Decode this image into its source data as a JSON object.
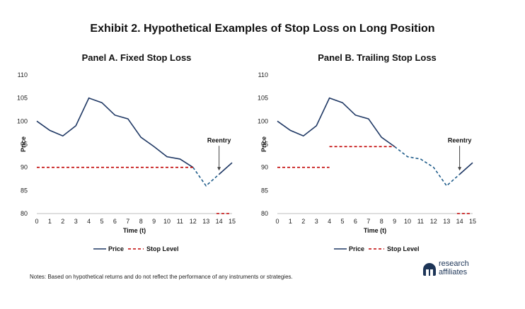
{
  "exhibit_title": "Exhibit 2. Hypothetical Examples of Stop Loss on Long Position",
  "notes": "Notes: Based on hypothetical returns and do not reflect the performance of any instruments or strategies.",
  "brand": {
    "line1": "research",
    "line2": "affiliates"
  },
  "colors": {
    "price": "#1f3864",
    "stop": "#c00000",
    "dashed_price": "#1f5c8a"
  },
  "chart_data": [
    {
      "type": "line",
      "title": "Panel A. Fixed Stop Loss",
      "xlabel": "Time (t)",
      "ylabel": "Price",
      "x": [
        0,
        1,
        2,
        3,
        4,
        5,
        6,
        7,
        8,
        9,
        10,
        11,
        12,
        13,
        14,
        15
      ],
      "xlim": [
        0,
        15
      ],
      "ylim": [
        80,
        110
      ],
      "yticks": [
        80,
        85,
        90,
        95,
        100,
        105,
        110
      ],
      "grid": false,
      "legend": "bottom-center",
      "series": [
        {
          "name": "Price",
          "style": "solid",
          "x": [
            0,
            1,
            2,
            3,
            4,
            5,
            6,
            7,
            8,
            9,
            10,
            11,
            12
          ],
          "values": [
            100,
            98,
            96.8,
            99,
            105,
            104,
            101.3,
            100.5,
            96.5,
            94.5,
            92.3,
            91.8,
            90
          ]
        },
        {
          "name": "",
          "style": "dashed",
          "x": [
            12,
            13,
            14
          ],
          "values": [
            90,
            86,
            88.5
          ]
        },
        {
          "name": "",
          "style": "solid",
          "x": [
            14,
            15
          ],
          "values": [
            88.5,
            91
          ]
        },
        {
          "name": "Stop Level",
          "style": "dashed",
          "segments": [
            {
              "x": [
                0,
                12
              ],
              "values": [
                90,
                90
              ]
            },
            {
              "x": [
                13.8,
                14.8
              ],
              "values": [
                80,
                80
              ]
            }
          ]
        }
      ],
      "annotations": [
        {
          "text": "Reentry",
          "x": 14,
          "y": 94.5,
          "arrow_to": 89.3
        }
      ]
    },
    {
      "type": "line",
      "title": "Panel B. Trailing Stop Loss",
      "xlabel": "Time (t)",
      "ylabel": "Price",
      "x": [
        0,
        1,
        2,
        3,
        4,
        5,
        6,
        7,
        8,
        9,
        10,
        11,
        12,
        13,
        14,
        15
      ],
      "xlim": [
        0,
        15
      ],
      "ylim": [
        80,
        110
      ],
      "yticks": [
        80,
        85,
        90,
        95,
        100,
        105,
        110
      ],
      "grid": false,
      "legend": "bottom-center",
      "series": [
        {
          "name": "Price",
          "style": "solid",
          "x": [
            0,
            1,
            2,
            3,
            4,
            5,
            6,
            7,
            8,
            9
          ],
          "values": [
            100,
            98,
            96.8,
            99,
            105,
            104,
            101.3,
            100.5,
            96.5,
            94.5
          ]
        },
        {
          "name": "",
          "style": "dashed",
          "x": [
            9,
            10,
            11,
            12,
            13,
            14
          ],
          "values": [
            94.5,
            92.3,
            91.8,
            90,
            86,
            88.5
          ]
        },
        {
          "name": "",
          "style": "solid",
          "x": [
            14,
            15
          ],
          "values": [
            88.5,
            91
          ]
        },
        {
          "name": "Stop Level",
          "style": "dashed",
          "segments": [
            {
              "x": [
                0,
                4
              ],
              "values": [
                90,
                90
              ]
            },
            {
              "x": [
                4,
                9
              ],
              "values": [
                94.5,
                94.5
              ]
            },
            {
              "x": [
                13.8,
                14.8
              ],
              "values": [
                80,
                80
              ]
            }
          ]
        }
      ],
      "annotations": [
        {
          "text": "Reentry",
          "x": 14,
          "y": 94.5,
          "arrow_to": 89.3
        }
      ]
    }
  ]
}
